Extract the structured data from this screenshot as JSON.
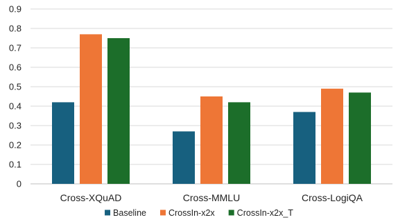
{
  "chart_data": {
    "type": "bar",
    "title": "",
    "xlabel": "",
    "ylabel": "",
    "categories": [
      "Cross-XQuAD",
      "Cross-MMLU",
      "Cross-LogiQA"
    ],
    "series": [
      {
        "name": "Baseline",
        "color": "#17607f",
        "values": [
          0.42,
          0.27,
          0.37
        ]
      },
      {
        "name": "CrossIn-x2x",
        "color": "#ee7636",
        "values": [
          0.77,
          0.45,
          0.49
        ]
      },
      {
        "name": "CrossIn-x2x_T",
        "color": "#1c6e2a",
        "values": [
          0.75,
          0.42,
          0.47
        ]
      }
    ],
    "ylim": [
      0,
      0.9
    ],
    "yticks": [
      "0",
      "0.1",
      "0.2",
      "0.3",
      "0.4",
      "0.5",
      "0.6",
      "0.7",
      "0.8",
      "0.9"
    ],
    "grid": true,
    "legend_position": "bottom",
    "gridline_color": "#d9d9d9",
    "axis_color": "#bfbfbf"
  }
}
